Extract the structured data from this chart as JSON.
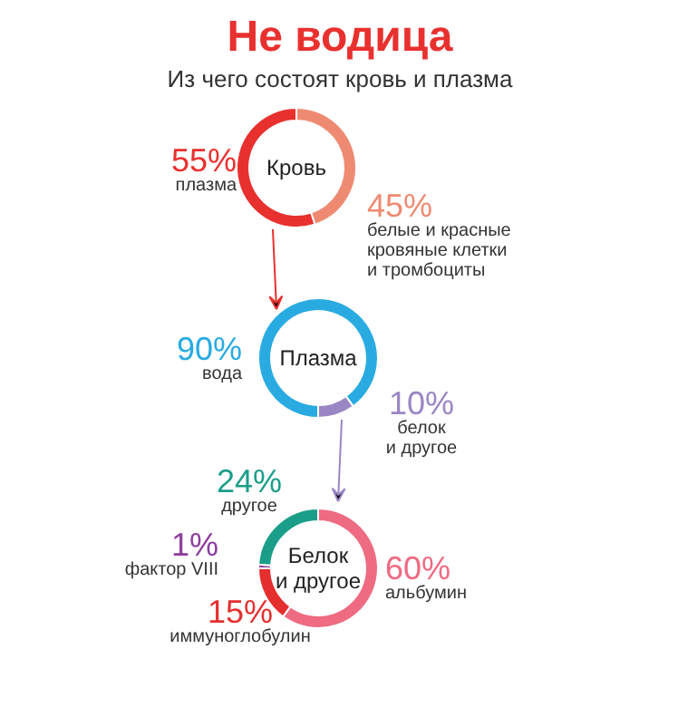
{
  "chart_data": [
    {
      "type": "other",
      "title": "Не водица",
      "subtitle": "Из чего состоят кровь и плазма"
    },
    {
      "type": "donut",
      "title": "Кровь",
      "categories": [
        "белые и красные кровяные клетки и тромбоциты",
        "плазма"
      ],
      "values": [
        45,
        55
      ],
      "colors": [
        "#ef8a72",
        "#e8312f"
      ],
      "value_labels": [
        "45%",
        "55%"
      ]
    },
    {
      "type": "donut",
      "title": "Плазма",
      "categories": [
        "вода",
        "белок и другое"
      ],
      "values": [
        90,
        10
      ],
      "colors": [
        "#29abe2",
        "#9b86c4"
      ],
      "value_labels": [
        "90%",
        "10%"
      ]
    },
    {
      "type": "donut",
      "title": "Белок и другое",
      "categories": [
        "альбумин",
        "иммуноглобулин",
        "фактор VIII",
        "другое"
      ],
      "values": [
        60,
        15,
        1,
        24
      ],
      "colors": [
        "#ee6b82",
        "#e52f2f",
        "#8e3d9e",
        "#1a9e8a"
      ],
      "value_labels": [
        "60%",
        "15%",
        "1%",
        "24%"
      ]
    }
  ]
}
